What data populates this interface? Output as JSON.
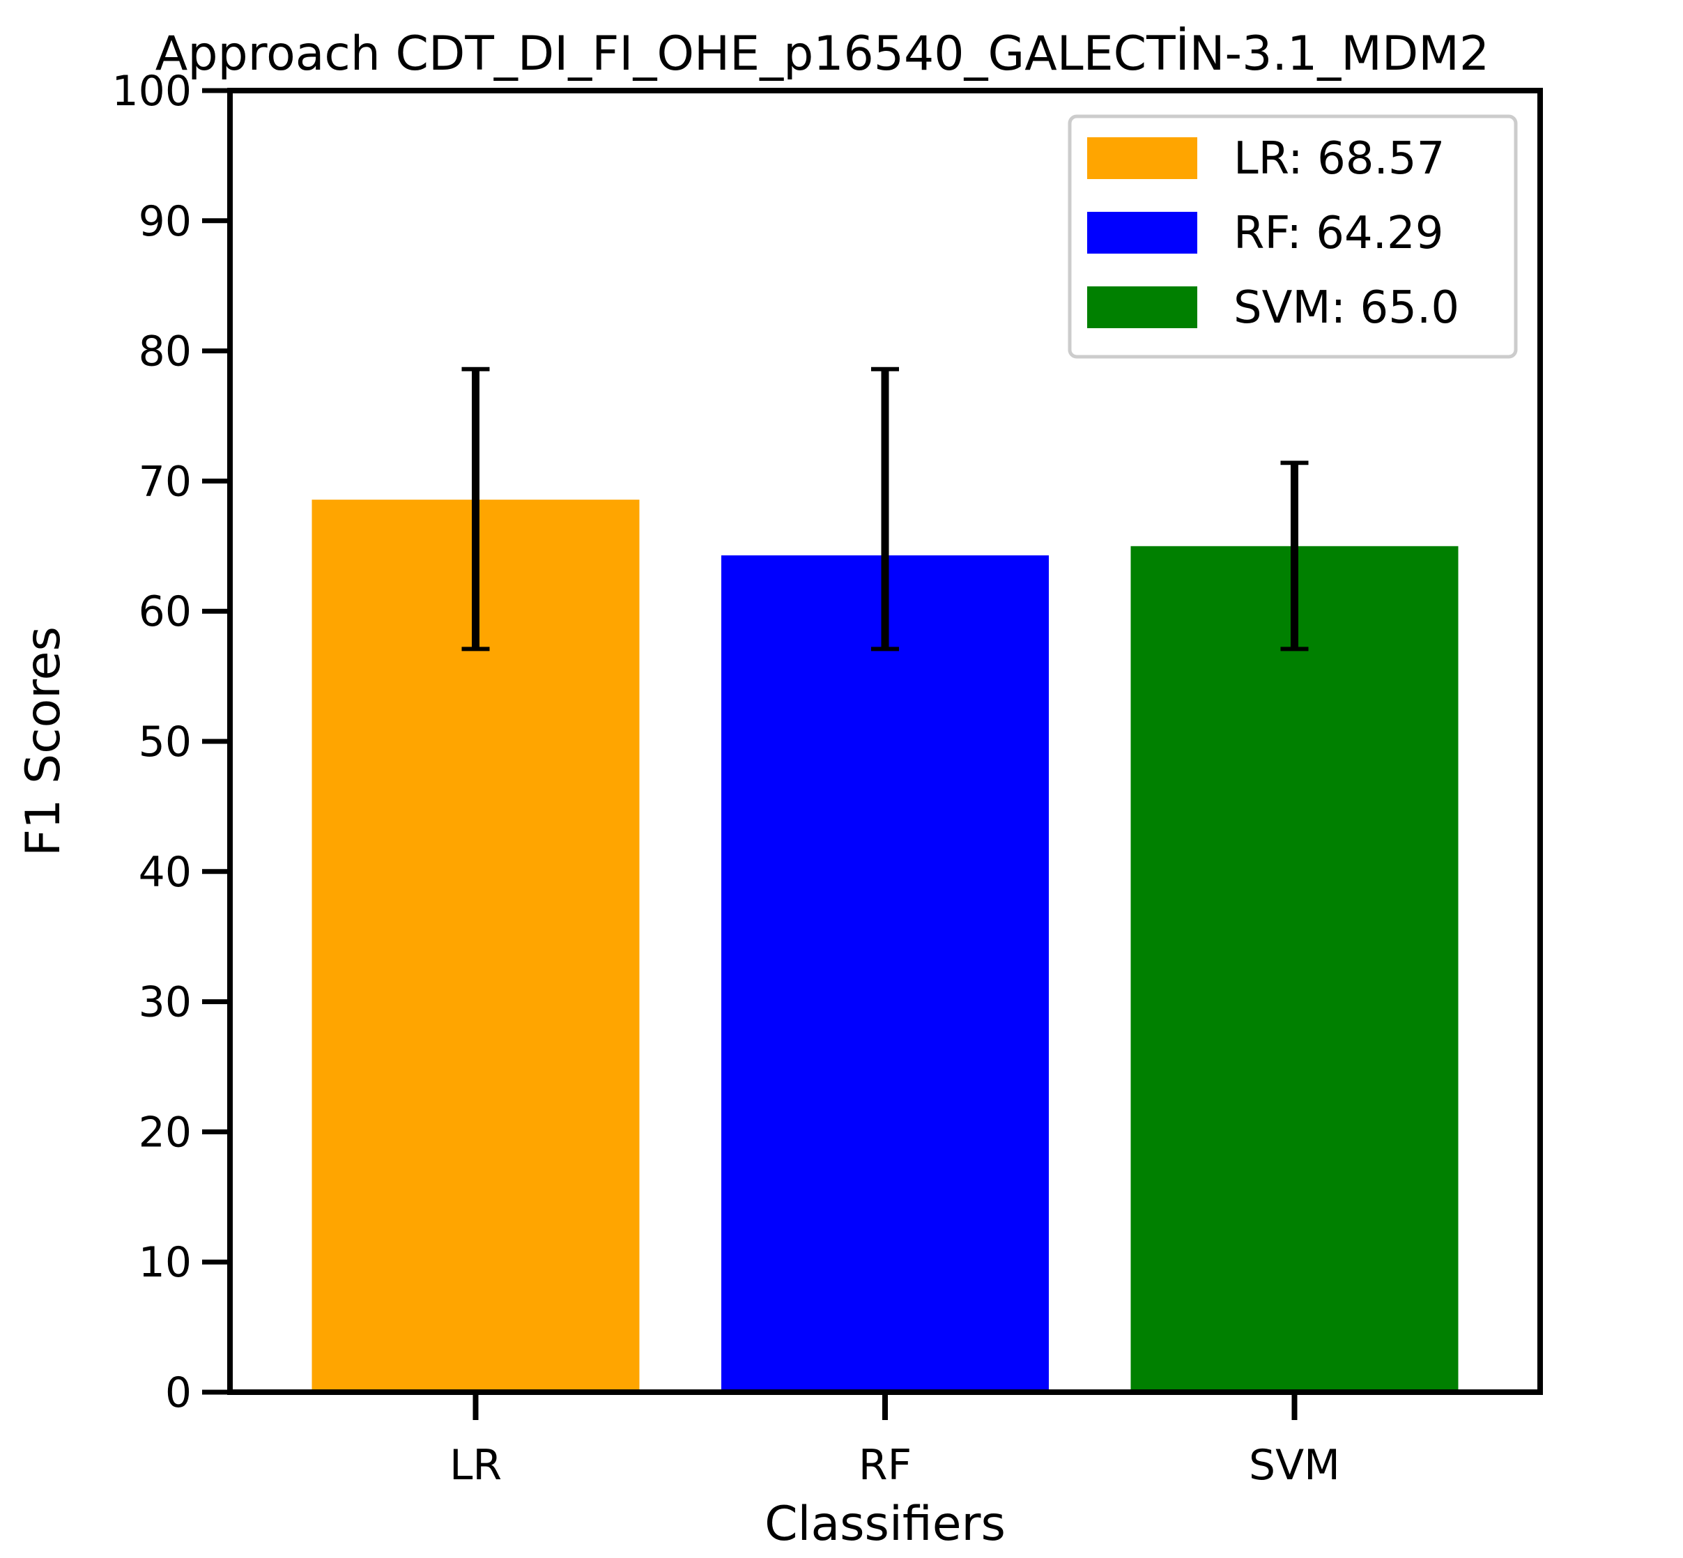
{
  "chart_data": {
    "type": "bar",
    "title": "Approach CDT_DI_FI_OHE_p16540_GALECTİN-3.1_MDM2",
    "xlabel": "Classifiers",
    "ylabel": "F1 Scores",
    "ylim": [
      0,
      100
    ],
    "yticks": [
      "0",
      "10",
      "20",
      "30",
      "40",
      "50",
      "60",
      "70",
      "80",
      "90",
      "100"
    ],
    "categories": [
      "LR",
      "RF",
      "SVM"
    ],
    "values": [
      68.57,
      64.29,
      65.0
    ],
    "error_low": [
      57.1,
      57.1,
      57.1
    ],
    "error_high": [
      78.6,
      78.6,
      71.4
    ],
    "colors": [
      "#ffa500",
      "#0000ff",
      "#008000"
    ],
    "grid": false,
    "legend_position": "top-right",
    "legend": [
      {
        "label": "LR: 68.57",
        "color": "#ffa500"
      },
      {
        "label": "RF: 64.29",
        "color": "#0000ff"
      },
      {
        "label": "SVM: 65.0",
        "color": "#008000"
      }
    ]
  }
}
